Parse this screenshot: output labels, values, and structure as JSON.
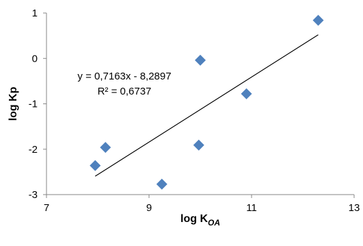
{
  "chart_data": {
    "type": "scatter",
    "title": "",
    "xlabel": "log K",
    "xlabel_subscript": "OA",
    "ylabel": "log Kp",
    "xlim": [
      7,
      13
    ],
    "ylim": [
      -3,
      1
    ],
    "x_ticks": [
      7,
      9,
      11,
      13
    ],
    "y_ticks": [
      -3,
      -2,
      -1,
      0,
      1
    ],
    "x_tick_labels": [
      "7",
      "9",
      "11",
      "13"
    ],
    "y_tick_labels": [
      "-3",
      "-2",
      "-1",
      "0",
      "1"
    ],
    "grid": false,
    "legend": "none",
    "series": [
      {
        "color": "#4F81BD",
        "marker": "diamond",
        "points": [
          {
            "x": 7.95,
            "y": -2.36
          },
          {
            "x": 8.15,
            "y": -1.96
          },
          {
            "x": 9.25,
            "y": -2.77
          },
          {
            "x": 9.97,
            "y": -1.91
          },
          {
            "x": 10.0,
            "y": -0.04
          },
          {
            "x": 10.9,
            "y": -0.78
          },
          {
            "x": 12.3,
            "y": 0.84
          }
        ]
      }
    ],
    "trendline": {
      "type": "linear",
      "slope": 0.7163,
      "intercept": -8.2897,
      "x_range": [
        7.95,
        12.3
      ],
      "color": "#000000",
      "equation_label": "y = 0,7163x - 8,2897",
      "r2_label": "R² = 0,6737"
    }
  }
}
